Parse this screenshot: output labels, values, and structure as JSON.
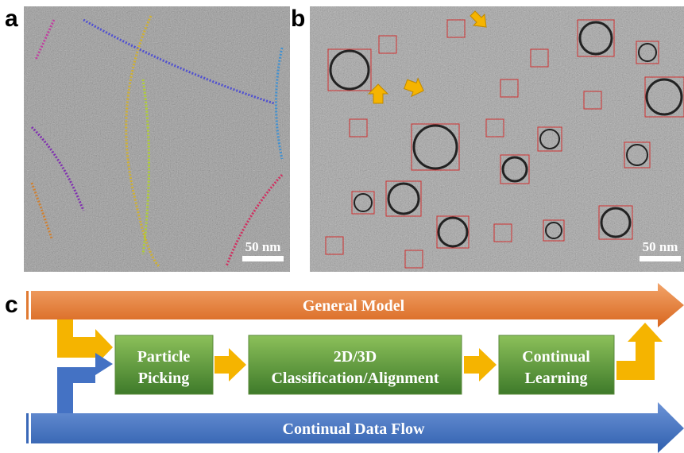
{
  "panel_a": {
    "label": "a",
    "scale_bar": "50 nm"
  },
  "panel_b": {
    "label": "b",
    "scale_bar": "50 nm"
  },
  "panel_c": {
    "label": "c",
    "general_model": "General Model",
    "data_flow": "Continual Data Flow",
    "steps": [
      [
        "Particle",
        "Picking"
      ],
      [
        "2D/3D",
        "Classification/Alignment"
      ],
      [
        "Continual",
        "Learning"
      ]
    ]
  }
}
